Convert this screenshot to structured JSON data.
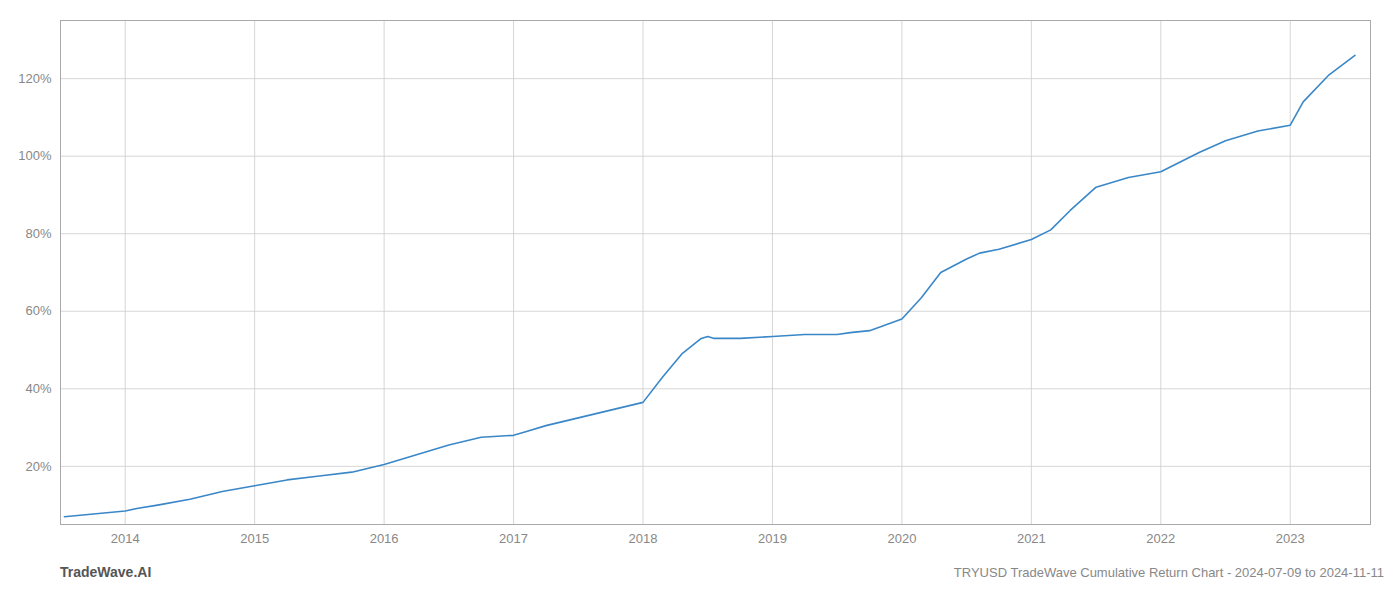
{
  "chart_data": {
    "type": "line",
    "title": "TRYUSD TradeWave Cumulative Return Chart - 2024-07-09 to 2024-11-11",
    "annotations": [
      "TradeWave.AI"
    ],
    "color": "#3a87c8",
    "x": [
      2013.53,
      2014.0,
      2014.1,
      2014.25,
      2014.5,
      2014.75,
      2015.0,
      2015.25,
      2015.5,
      2015.75,
      2016.0,
      2016.25,
      2016.5,
      2016.75,
      2017.0,
      2017.1,
      2017.25,
      2017.5,
      2017.75,
      2018.0,
      2018.15,
      2018.3,
      2018.45,
      2018.5,
      2018.55,
      2018.75,
      2019.0,
      2019.25,
      2019.5,
      2019.6,
      2019.75,
      2020.0,
      2020.15,
      2020.3,
      2020.5,
      2020.6,
      2020.75,
      2021.0,
      2021.15,
      2021.3,
      2021.5,
      2021.75,
      2022.0,
      2022.15,
      2022.3,
      2022.5,
      2022.75,
      2023.0,
      2023.1,
      2023.3,
      2023.5
    ],
    "values": [
      7.0,
      8.5,
      9.2,
      10.0,
      11.5,
      13.5,
      15.0,
      16.5,
      17.5,
      18.5,
      20.5,
      23.0,
      25.5,
      27.5,
      28.0,
      29.0,
      30.5,
      32.5,
      34.5,
      36.5,
      43.0,
      49.0,
      53.0,
      53.5,
      53.0,
      53.0,
      53.5,
      54.0,
      54.0,
      54.5,
      55.0,
      58.0,
      63.5,
      70.0,
      73.5,
      75.0,
      76.0,
      78.5,
      81.0,
      86.0,
      92.0,
      94.5,
      96.0,
      98.5,
      101.0,
      104.0,
      106.5,
      108.0,
      114.0,
      121.0,
      126.0
    ],
    "xlim": [
      2013.5,
      2023.62
    ],
    "ylim": [
      5,
      135
    ],
    "xticks": [
      2014,
      2015,
      2016,
      2017,
      2018,
      2019,
      2020,
      2021,
      2022,
      2023
    ],
    "yticks": [
      {
        "value": 20,
        "label": "20%"
      },
      {
        "value": 40,
        "label": "40%"
      },
      {
        "value": 60,
        "label": "60%"
      },
      {
        "value": 80,
        "label": "80%"
      },
      {
        "value": 100,
        "label": "100%"
      },
      {
        "value": 120,
        "label": "120%"
      }
    ],
    "grid": true
  }
}
